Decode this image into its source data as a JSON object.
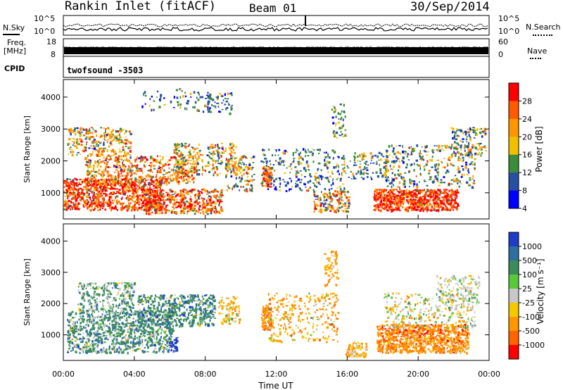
{
  "header": {
    "station": "Rankin Inlet (fitACF)",
    "beam": "Beam 01",
    "date": "30/Sep/2014"
  },
  "strip": {
    "nsky_label": "N.Sky",
    "nsearch_label": "N.Search",
    "freq_label_1": "Freq.",
    "freq_label_2": "[MHz]",
    "nave_label": "Nave",
    "cpid_label": "CPID",
    "cpid_value": "twofsound -3503",
    "nsky_ticks": [
      "10^5",
      "10^0"
    ],
    "nsearch_ticks": [
      "10^5",
      "10^0"
    ],
    "freq_ticks": [
      "18",
      "8"
    ],
    "nave_ticks": [
      "60",
      "0"
    ]
  },
  "chart_data": [
    {
      "type": "heatmap",
      "panel": "power",
      "ylabel": "Slant Range [km]",
      "yticks": [
        1000,
        2000,
        3000,
        4000
      ],
      "ylim": [
        180,
        4550
      ],
      "xlim": [
        "00:00",
        "24:00"
      ],
      "colorbar": {
        "label": "Power [dB]",
        "ticks": [
          "28",
          "24",
          "20",
          "16",
          "12",
          "8",
          "4"
        ],
        "colors": [
          "#ff0000",
          "#ff5a00",
          "#ff9600",
          "#f0c000",
          "#3c8c3c",
          "#2850a0",
          "#0000ff"
        ]
      }
    },
    {
      "type": "heatmap",
      "panel": "velocity",
      "ylabel": "Slant Range [km]",
      "yticks": [
        1000,
        2000,
        3000,
        4000
      ],
      "ylim": [
        180,
        4550
      ],
      "xlim": [
        "00:00",
        "24:00"
      ],
      "xlabel": "Time UT",
      "xticks": [
        "00:00",
        "04:00",
        "08:00",
        "12:00",
        "16:00",
        "20:00",
        "00:00"
      ],
      "colorbar": {
        "label": "Velocity [m s⁻¹]",
        "ticks": [
          "1000",
          "500",
          "100",
          "25",
          "-25",
          "-100",
          "-500",
          "-1000"
        ],
        "colors": [
          "#1e3cc8",
          "#2e6ea0",
          "#3c8c5a",
          "#5ac83c",
          "#c8c8c8",
          "#f5c800",
          "#ff9600",
          "#ff6400",
          "#ff0000"
        ]
      }
    }
  ]
}
